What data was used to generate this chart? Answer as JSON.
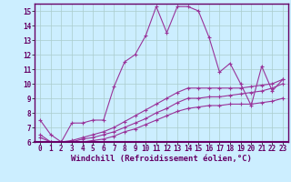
{
  "xlabel": "Windchill (Refroidissement éolien,°C)",
  "x": [
    0,
    1,
    2,
    3,
    4,
    5,
    6,
    7,
    8,
    9,
    10,
    11,
    12,
    13,
    14,
    15,
    16,
    17,
    18,
    19,
    20,
    21,
    22,
    23
  ],
  "line1": [
    7.5,
    6.5,
    6.0,
    7.3,
    7.3,
    7.5,
    7.5,
    9.8,
    11.5,
    12.0,
    13.3,
    15.3,
    13.5,
    15.3,
    15.3,
    15.0,
    13.2,
    10.8,
    11.4,
    10.0,
    8.5,
    11.2,
    9.5,
    10.3
  ],
  "line2": [
    6.5,
    6.0,
    6.0,
    6.1,
    6.3,
    6.5,
    6.7,
    7.0,
    7.4,
    7.8,
    8.2,
    8.6,
    9.0,
    9.4,
    9.7,
    9.7,
    9.7,
    9.7,
    9.7,
    9.7,
    9.8,
    9.9,
    10.0,
    10.3
  ],
  "line3": [
    6.3,
    6.0,
    6.0,
    6.0,
    6.2,
    6.3,
    6.5,
    6.7,
    7.0,
    7.3,
    7.6,
    8.0,
    8.3,
    8.7,
    9.0,
    9.0,
    9.1,
    9.1,
    9.2,
    9.3,
    9.4,
    9.5,
    9.7,
    10.0
  ],
  "line4": [
    6.0,
    6.0,
    6.0,
    6.0,
    6.0,
    6.1,
    6.2,
    6.4,
    6.7,
    6.9,
    7.2,
    7.5,
    7.8,
    8.1,
    8.3,
    8.4,
    8.5,
    8.5,
    8.6,
    8.6,
    8.6,
    8.7,
    8.8,
    9.0
  ],
  "line_color": "#993399",
  "bg_color": "#cceeff",
  "grid_color": "#aacccc",
  "ylim": [
    6,
    15.5
  ],
  "yticks": [
    6,
    7,
    8,
    9,
    10,
    11,
    12,
    13,
    14,
    15
  ],
  "xticks": [
    0,
    1,
    2,
    3,
    4,
    5,
    6,
    7,
    8,
    9,
    10,
    11,
    12,
    13,
    14,
    15,
    16,
    17,
    18,
    19,
    20,
    21,
    22,
    23
  ],
  "xlabel_fontsize": 6.5,
  "tick_fontsize": 5.5,
  "marker": "+",
  "marker_size": 3.5,
  "line_width": 0.8
}
